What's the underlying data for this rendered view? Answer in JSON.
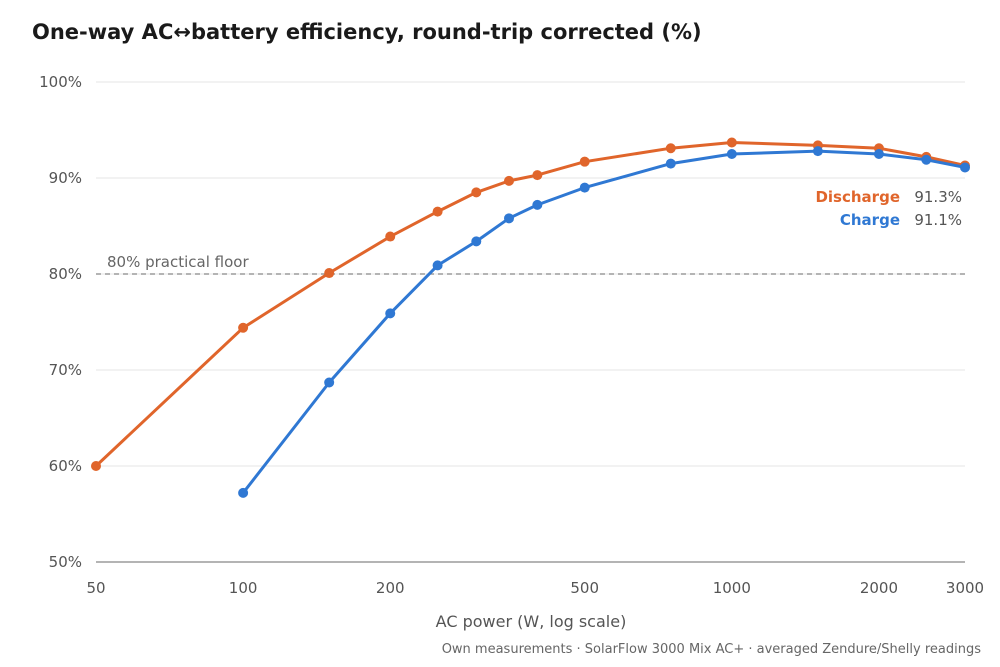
{
  "chart_data": {
    "type": "line",
    "title": "One-way AC↔battery efficiency, round-trip corrected (%)",
    "xlabel": "AC power (W, log scale)",
    "ylabel": "",
    "xscale": "log",
    "xlim": [
      50,
      3000
    ],
    "ylim": [
      50,
      100
    ],
    "grid": true,
    "x_ticks": [
      50,
      100,
      200,
      500,
      1000,
      2000,
      3000
    ],
    "x_tick_labels": [
      "50",
      "100",
      "200",
      "500",
      "1000",
      "2000",
      "3000"
    ],
    "y_ticks": [
      50,
      60,
      70,
      80,
      90,
      100
    ],
    "y_tick_labels": [
      "50%",
      "60%",
      "70%",
      "80%",
      "90%",
      "100%"
    ],
    "reference_line": {
      "y": 80,
      "label": "80% practical floor",
      "style": "dashed"
    },
    "legend_placement": "right, at line ends",
    "series": [
      {
        "name": "Discharge",
        "color": "#e0652b",
        "end_label": "91.3%",
        "x": [
          50,
          100,
          150,
          200,
          250,
          300,
          350,
          400,
          500,
          750,
          1000,
          1500,
          2000,
          2500,
          3000
        ],
        "y": [
          60.0,
          74.4,
          80.1,
          83.9,
          86.5,
          88.5,
          89.7,
          90.3,
          91.7,
          93.1,
          93.7,
          93.4,
          93.1,
          92.2,
          91.3
        ]
      },
      {
        "name": "Charge",
        "color": "#2f78d3",
        "end_label": "91.1%",
        "x": [
          100,
          150,
          200,
          250,
          300,
          350,
          400,
          500,
          750,
          1000,
          1500,
          2000,
          2500,
          3000
        ],
        "y": [
          57.2,
          68.7,
          75.9,
          80.9,
          83.4,
          85.8,
          87.2,
          89.0,
          91.5,
          92.5,
          92.8,
          92.5,
          91.9,
          91.1
        ]
      }
    ],
    "source_note": "Own measurements · SolarFlow 3000 Mix AC+ · averaged Zendure/Shelly readings"
  }
}
